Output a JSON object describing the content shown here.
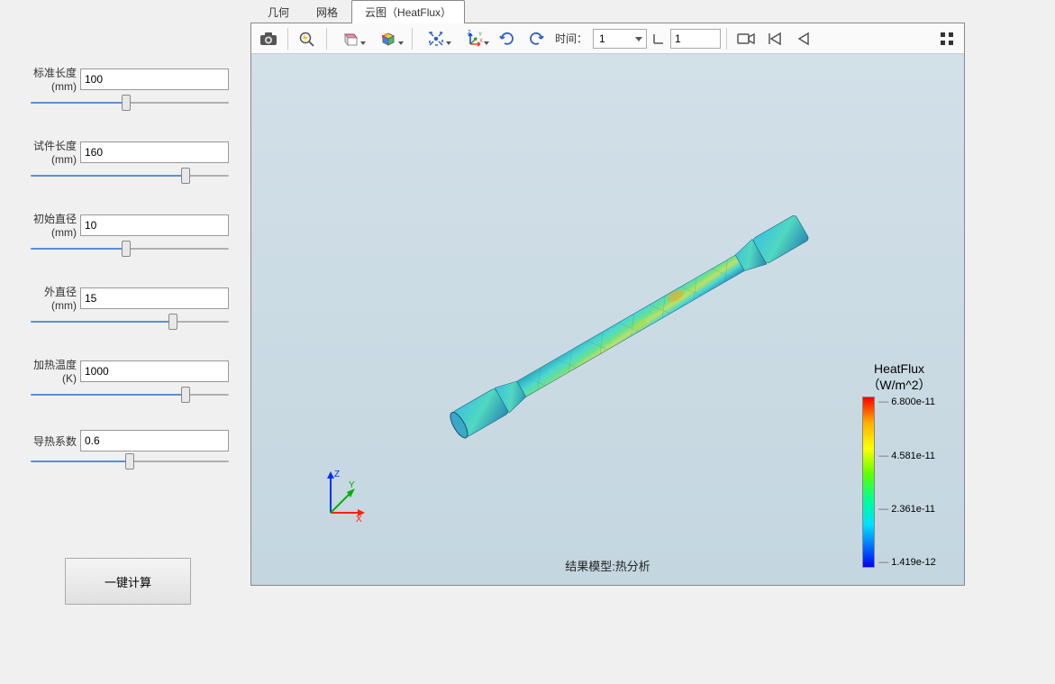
{
  "params": [
    {
      "label": "标准长度(mm)",
      "value": "100",
      "slider_pct": 48
    },
    {
      "label": "试件长度(mm)",
      "value": "160",
      "slider_pct": 78
    },
    {
      "label": "初始直径(mm)",
      "value": "10",
      "slider_pct": 48
    },
    {
      "label": "外直径(mm)",
      "value": "15",
      "slider_pct": 72
    },
    {
      "label": "加热温度(K)",
      "value": "1000",
      "slider_pct": 78
    },
    {
      "label": "导热系数",
      "value": "0.6",
      "slider_pct": 50
    }
  ],
  "calc_button": "一键计算",
  "tabs": [
    {
      "label": "几何",
      "active": false
    },
    {
      "label": "网格",
      "active": false
    },
    {
      "label": "云图（HeatFlux）",
      "active": true
    }
  ],
  "toolbar": {
    "time_label": "时间：",
    "time_value": "1",
    "angle_value": "1"
  },
  "result_label": "结果模型:热分析",
  "legend": {
    "title_line1": "HeatFlux",
    "title_line2": "（W/m^2）",
    "ticks": [
      "6.800e-11",
      "4.581e-11",
      "2.361e-11",
      "1.419e-12"
    ]
  },
  "axis": {
    "x": "X",
    "y": "Y",
    "z": "Z"
  },
  "colors": {
    "rod_base": "#3cc9d0",
    "rod_shadow": "#1a8aa8",
    "rod_green": "#5fd860",
    "rod_yellow": "#e8d040",
    "window_bg": "#f0f0f0"
  }
}
